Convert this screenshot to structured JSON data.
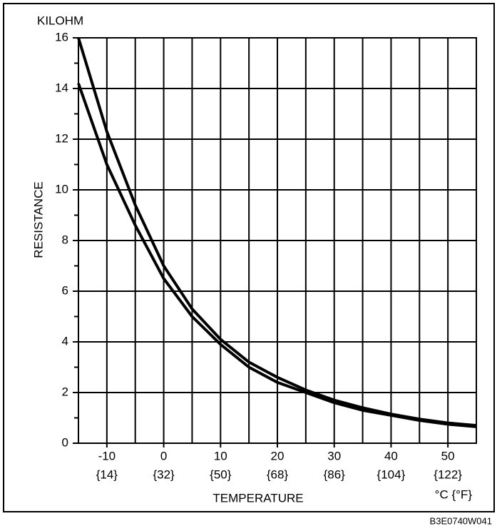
{
  "chart_data": {
    "type": "line",
    "y_unit_label": "KILOHM",
    "y_axis_label": "RESISTANCE",
    "x_axis_label": "TEMPERATURE",
    "x_unit_label": "°C {°F}",
    "figure_code": "B3E0740W041",
    "x": [
      -15,
      -10,
      -5,
      0,
      5,
      10,
      15,
      20,
      25,
      30,
      35,
      40,
      45,
      50,
      55
    ],
    "series": [
      {
        "color": "#000000",
        "values": [
          16,
          12.3,
          9.4,
          7.0,
          5.3,
          4.1,
          3.2,
          2.6,
          2.1,
          1.7,
          1.4,
          1.15,
          0.95,
          0.8,
          0.7
        ]
      },
      {
        "color": "#000000",
        "values": [
          14.2,
          11.0,
          8.6,
          6.5,
          5.0,
          3.9,
          3.0,
          2.4,
          2.0,
          1.6,
          1.3,
          1.1,
          0.9,
          0.75,
          0.65
        ]
      }
    ],
    "xlim": [
      -15,
      55
    ],
    "ylim": [
      0,
      16
    ],
    "xticks": [
      -10,
      0,
      10,
      20,
      30,
      40,
      50
    ],
    "xtick_secondary_labels": [
      "{14}",
      "{32}",
      "{50}",
      "{68}",
      "{86}",
      "{104}",
      "{122}"
    ],
    "xminor": [
      -5,
      5,
      15,
      25,
      35,
      45
    ],
    "yticks": [
      0,
      2,
      4,
      6,
      8,
      10,
      12,
      14,
      16
    ],
    "yminor": [
      1,
      3,
      5,
      7,
      9,
      11,
      13,
      15
    ],
    "grid": true
  }
}
